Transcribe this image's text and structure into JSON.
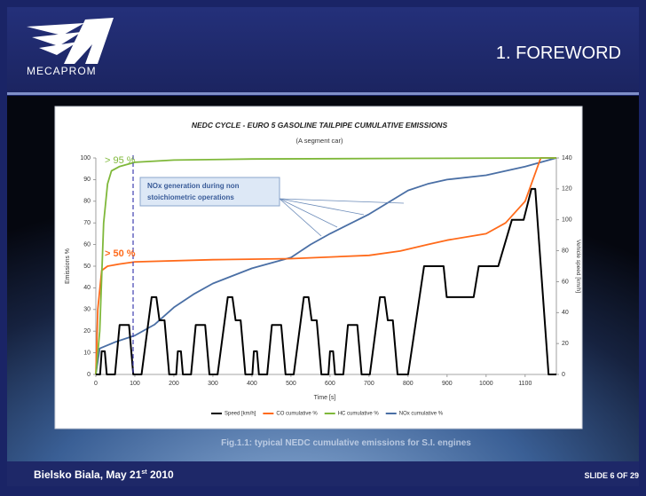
{
  "header": {
    "logo_text": "MECAPROM",
    "title": "1. FOREWORD"
  },
  "chart_data": {
    "type": "line",
    "title": "NEDC CYCLE - EURO 5 GASOLINE TAILPIPE CUMULATIVE EMISSIONS",
    "subtitle": "(A segment car)",
    "x_label": "Time [s]",
    "y_label": "Emissions %",
    "y2_label": "Vehicle speed [km/h]",
    "xlim": [
      0,
      1180
    ],
    "xticks": [
      0,
      100,
      200,
      300,
      400,
      500,
      600,
      700,
      800,
      900,
      1000,
      1100
    ],
    "ylim": [
      0,
      100
    ],
    "yticks": [
      0,
      10,
      20,
      30,
      40,
      50,
      60,
      70,
      80,
      90,
      100
    ],
    "y2lim": [
      0,
      140
    ],
    "y2ticks": [
      0,
      20,
      40,
      60,
      80,
      100,
      120,
      140
    ],
    "grid": false,
    "legend": "bottom",
    "series": [
      {
        "name": "NOx cumulative %",
        "color": "#4a6fa5",
        "x": [
          0,
          10,
          50,
          100,
          150,
          200,
          250,
          300,
          400,
          500,
          550,
          600,
          700,
          800,
          850,
          900,
          1000,
          1100,
          1180
        ],
        "values": [
          0,
          12,
          15,
          18,
          23,
          31,
          37,
          42,
          49,
          54,
          60,
          65,
          74,
          85,
          88,
          90,
          92,
          96,
          100
        ]
      },
      {
        "name": "CO cumulative %",
        "color": "#ff6a1a",
        "x": [
          0,
          5,
          15,
          30,
          60,
          100,
          300,
          500,
          700,
          780,
          850,
          900,
          1000,
          1050,
          1100,
          1140,
          1180
        ],
        "values": [
          0,
          30,
          48,
          50,
          51,
          52,
          53,
          53.5,
          55,
          57,
          60,
          62,
          65,
          70,
          80,
          100,
          100
        ]
      },
      {
        "name": "HC cumulative %",
        "color": "#7fb83a",
        "x": [
          0,
          10,
          20,
          30,
          40,
          60,
          100,
          200,
          400,
          800,
          1180
        ],
        "values": [
          0,
          20,
          70,
          88,
          94,
          96,
          98,
          99,
          99.5,
          99.8,
          100
        ]
      },
      {
        "name": "Speed [km/h]",
        "color": "#000000",
        "axis": "y2",
        "x": [
          0,
          11,
          15,
          23,
          28,
          49,
          61,
          85,
          96,
          117,
          143,
          155,
          163,
          176,
          188,
          195,
          206,
          210,
          218,
          223,
          244,
          256,
          280,
          291,
          312,
          338,
          350,
          358,
          371,
          383,
          390,
          401,
          405,
          413,
          418,
          439,
          451,
          475,
          486,
          507,
          533,
          545,
          553,
          566,
          578,
          585,
          596,
          600,
          608,
          613,
          634,
          646,
          670,
          681,
          702,
          728,
          740,
          748,
          761,
          773,
          780,
          800,
          841,
          891,
          899,
          968,
          981,
          1031,
          1066,
          1096,
          1116,
          1126,
          1160,
          1180
        ],
        "values": [
          0,
          0,
          15,
          15,
          0,
          0,
          32,
          32,
          0,
          0,
          50,
          50,
          35,
          35,
          0,
          0,
          0,
          15,
          15,
          0,
          0,
          32,
          32,
          0,
          0,
          50,
          50,
          35,
          35,
          0,
          0,
          0,
          15,
          15,
          0,
          0,
          32,
          32,
          0,
          0,
          50,
          50,
          35,
          35,
          0,
          0,
          0,
          15,
          15,
          0,
          0,
          32,
          32,
          0,
          0,
          50,
          50,
          35,
          35,
          0,
          0,
          0,
          70,
          70,
          50,
          50,
          70,
          70,
          100,
          100,
          120,
          120,
          0,
          0
        ]
      }
    ],
    "legend_order": [
      3,
      1,
      2,
      0
    ],
    "annotations": [
      "> 95 %",
      "> 50 %",
      "NOx generation during non",
      "stoichiometric operations"
    ],
    "caption": "Fig.1.1: typical NEDC cumulative emissions for S.I. engines"
  },
  "footer": {
    "place_date": "Bielsko Biala, May 21",
    "date_suffix": "st",
    "year": " 2010",
    "slide": "SLIDE 6 OF 29"
  }
}
